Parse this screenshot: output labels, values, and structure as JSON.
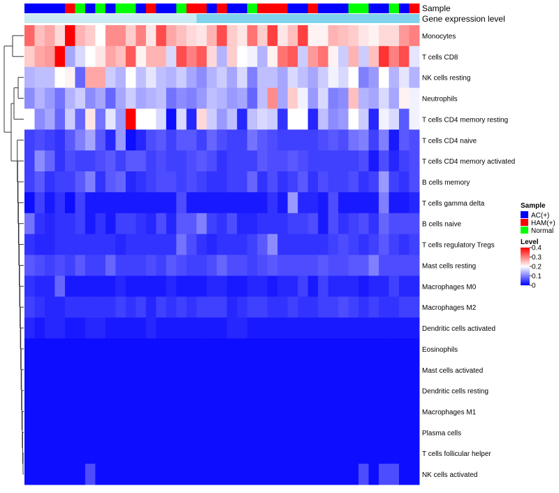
{
  "chart_data": {
    "type": "heatmap",
    "annotation_labels": {
      "sample": "Sample",
      "gene_expression": "Gene expression level"
    },
    "legend": {
      "sample_title": "Sample",
      "sample_entries": [
        {
          "label": "AC(+)",
          "color": "#0000ff"
        },
        {
          "label": "HAM(+)",
          "color": "#ff0000"
        },
        {
          "label": "Normal",
          "color": "#00ff00"
        }
      ],
      "level_title": "Level",
      "level_ticks": [
        "0.4",
        "0.3",
        "0.2",
        "0.1",
        "0"
      ],
      "level_tick_values": [
        0.4,
        0.3,
        0.2,
        0.1,
        0.0
      ],
      "color_scale": {
        "min": 0.0,
        "mid": 0.2,
        "max": 0.4,
        "low": "#0000ff",
        "midcolor": "#ffffff",
        "high": "#ff0000"
      }
    },
    "gene_expression_colors": {
      "low": "#dceff5",
      "high": "#6fcdea"
    },
    "sample_groups": [
      "AC(+)",
      "AC(+)",
      "AC(+)",
      "AC(+)",
      "HAM(+)",
      "Normal",
      "AC(+)",
      "Normal",
      "AC(+)",
      "Normal",
      "Normal",
      "AC(+)",
      "HAM(+)",
      "AC(+)",
      "AC(+)",
      "Normal",
      "HAM(+)",
      "HAM(+)",
      "AC(+)",
      "HAM(+)",
      "AC(+)",
      "AC(+)",
      "Normal",
      "HAM(+)",
      "HAM(+)",
      "HAM(+)",
      "AC(+)",
      "AC(+)",
      "HAM(+)",
      "AC(+)",
      "AC(+)",
      "AC(+)",
      "Normal",
      "Normal",
      "AC(+)",
      "AC(+)",
      "Normal",
      "AC(+)",
      "HAM(+)"
    ],
    "gene_expression_row": [
      0.15,
      0.15,
      0.15,
      0.15,
      0.15,
      0.15,
      0.15,
      0.15,
      0.15,
      0.15,
      0.15,
      0.15,
      0.15,
      0.15,
      0.15,
      0.15,
      0.15,
      0.85,
      0.85,
      0.85,
      0.85,
      0.85,
      0.85,
      0.85,
      0.85,
      0.85,
      0.85,
      0.85,
      0.85,
      0.85,
      0.85,
      0.85,
      0.85,
      0.85,
      0.85,
      0.85,
      0.85,
      0.85,
      0.85
    ],
    "rows": [
      {
        "label": "Monocytes",
        "values": [
          0.32,
          0.25,
          0.27,
          0.23,
          0.4,
          0.26,
          0.24,
          0.2,
          0.29,
          0.29,
          0.24,
          0.3,
          0.22,
          0.34,
          0.27,
          0.25,
          0.23,
          0.22,
          0.26,
          0.34,
          0.24,
          0.22,
          0.31,
          0.24,
          0.35,
          0.22,
          0.25,
          0.35,
          0.21,
          0.21,
          0.26,
          0.25,
          0.24,
          0.22,
          0.21,
          0.23,
          0.23,
          0.28,
          0.3
        ]
      },
      {
        "label": "T cells CD8",
        "values": [
          0.24,
          0.27,
          0.28,
          0.4,
          0.13,
          0.17,
          0.2,
          0.22,
          0.27,
          0.25,
          0.33,
          0.21,
          0.26,
          0.26,
          0.17,
          0.34,
          0.3,
          0.33,
          0.23,
          0.14,
          0.24,
          0.2,
          0.19,
          0.14,
          0.21,
          0.31,
          0.33,
          0.16,
          0.28,
          0.31,
          0.21,
          0.16,
          0.26,
          0.16,
          0.25,
          0.36,
          0.3,
          0.34,
          0.18
        ]
      },
      {
        "label": "NK cells resting",
        "values": [
          0.14,
          0.15,
          0.15,
          0.2,
          0.21,
          0.08,
          0.27,
          0.27,
          0.16,
          0.14,
          0.2,
          0.15,
          0.18,
          0.15,
          0.14,
          0.16,
          0.13,
          0.11,
          0.14,
          0.16,
          0.13,
          0.17,
          0.1,
          0.15,
          0.15,
          0.13,
          0.17,
          0.15,
          0.13,
          0.16,
          0.19,
          0.17,
          0.2,
          0.1,
          0.12,
          0.2,
          0.14,
          0.18,
          0.14
        ]
      },
      {
        "label": "Neutrophils",
        "values": [
          0.11,
          0.14,
          0.12,
          0.09,
          0.14,
          0.16,
          0.11,
          0.13,
          0.08,
          0.13,
          0.16,
          0.13,
          0.14,
          0.15,
          0.09,
          0.11,
          0.1,
          0.12,
          0.15,
          0.14,
          0.12,
          0.13,
          0.08,
          0.15,
          0.29,
          0.13,
          0.24,
          0.19,
          0.12,
          0.17,
          0.1,
          0.11,
          0.25,
          0.14,
          0.13,
          0.17,
          0.13,
          0.21,
          0.19
        ]
      },
      {
        "label": "T cells CD4 memory resting",
        "values": [
          0.2,
          0.11,
          0.13,
          0.08,
          0.16,
          0.08,
          0.22,
          0.09,
          0.18,
          0.12,
          0.4,
          0.2,
          0.2,
          0.17,
          0.01,
          0.17,
          0.03,
          0.23,
          0.16,
          0.12,
          0.15,
          0.03,
          0.15,
          0.17,
          0.16,
          0.04,
          0.2,
          0.2,
          0.03,
          0.15,
          0.11,
          0.12,
          0.2,
          0.16,
          0.03,
          0.19,
          0.17,
          0.07,
          0.19
        ]
      },
      {
        "label": "T cells CD4 naive",
        "values": [
          0.05,
          0.06,
          0.05,
          0.04,
          0.07,
          0.1,
          0.13,
          0.07,
          0.03,
          0.12,
          0.01,
          0.03,
          0.06,
          0.07,
          0.05,
          0.07,
          0.07,
          0.05,
          0.08,
          0.06,
          0.05,
          0.05,
          0.09,
          0.07,
          0.06,
          0.05,
          0.05,
          0.05,
          0.05,
          0.06,
          0.07,
          0.06,
          0.09,
          0.1,
          0.05,
          0.1,
          0.02,
          0.07,
          0.06
        ]
      },
      {
        "label": "T cells CD4 memory activated",
        "values": [
          0.05,
          0.11,
          0.08,
          0.04,
          0.06,
          0.05,
          0.05,
          0.06,
          0.07,
          0.05,
          0.07,
          0.07,
          0.05,
          0.06,
          0.05,
          0.05,
          0.06,
          0.07,
          0.06,
          0.04,
          0.05,
          0.05,
          0.05,
          0.07,
          0.06,
          0.06,
          0.07,
          0.06,
          0.05,
          0.05,
          0.05,
          0.05,
          0.05,
          0.06,
          0.02,
          0.06,
          0.03,
          0.05,
          0.06
        ]
      },
      {
        "label": "B cells memory",
        "values": [
          0.05,
          0.07,
          0.04,
          0.05,
          0.05,
          0.07,
          0.1,
          0.04,
          0.07,
          0.08,
          0.03,
          0.04,
          0.05,
          0.06,
          0.06,
          0.05,
          0.06,
          0.05,
          0.04,
          0.04,
          0.05,
          0.05,
          0.08,
          0.04,
          0.06,
          0.04,
          0.05,
          0.07,
          0.04,
          0.06,
          0.05,
          0.05,
          0.06,
          0.04,
          0.05,
          0.12,
          0.05,
          0.04,
          0.06
        ]
      },
      {
        "label": "T cells gamma delta",
        "values": [
          0.01,
          0.05,
          0.02,
          0.04,
          0.01,
          0.05,
          0.02,
          0.02,
          0.02,
          0.02,
          0.02,
          0.02,
          0.02,
          0.02,
          0.02,
          0.06,
          0.02,
          0.02,
          0.02,
          0.02,
          0.02,
          0.02,
          0.02,
          0.02,
          0.04,
          0.02,
          0.12,
          0.03,
          0.03,
          0.02,
          0.06,
          0.02,
          0.02,
          0.02,
          0.02,
          0.1,
          0.02,
          0.02,
          0.03
        ]
      },
      {
        "label": "B cells naive",
        "values": [
          0.09,
          0.04,
          0.03,
          0.04,
          0.04,
          0.05,
          0.02,
          0.04,
          0.02,
          0.05,
          0.05,
          0.04,
          0.03,
          0.06,
          0.03,
          0.07,
          0.07,
          0.1,
          0.05,
          0.04,
          0.06,
          0.03,
          0.03,
          0.04,
          0.04,
          0.04,
          0.05,
          0.05,
          0.06,
          0.02,
          0.06,
          0.04,
          0.05,
          0.06,
          0.04,
          0.08,
          0.06,
          0.06,
          0.06
        ]
      },
      {
        "label": "T cells regulatory  Tregs",
        "values": [
          0.04,
          0.03,
          0.03,
          0.04,
          0.04,
          0.04,
          0.04,
          0.04,
          0.04,
          0.03,
          0.04,
          0.04,
          0.04,
          0.04,
          0.04,
          0.09,
          0.06,
          0.04,
          0.03,
          0.04,
          0.04,
          0.04,
          0.05,
          0.07,
          0.11,
          0.04,
          0.04,
          0.04,
          0.04,
          0.04,
          0.05,
          0.06,
          0.05,
          0.04,
          0.05,
          0.07,
          0.05,
          0.04,
          0.05
        ]
      },
      {
        "label": "Mast cells resting",
        "values": [
          0.07,
          0.06,
          0.05,
          0.06,
          0.05,
          0.07,
          0.05,
          0.05,
          0.08,
          0.05,
          0.05,
          0.05,
          0.06,
          0.05,
          0.07,
          0.06,
          0.05,
          0.05,
          0.06,
          0.08,
          0.06,
          0.06,
          0.05,
          0.06,
          0.07,
          0.06,
          0.06,
          0.06,
          0.06,
          0.07,
          0.06,
          0.06,
          0.07,
          0.07,
          0.1,
          0.06,
          0.06,
          0.06,
          0.06
        ]
      },
      {
        "label": "Macrophages M0",
        "values": [
          0.04,
          0.03,
          0.03,
          0.08,
          0.02,
          0.02,
          0.02,
          0.02,
          0.02,
          0.03,
          0.02,
          0.02,
          0.02,
          0.02,
          0.03,
          0.02,
          0.02,
          0.02,
          0.03,
          0.03,
          0.02,
          0.02,
          0.03,
          0.03,
          0.02,
          0.03,
          0.03,
          0.05,
          0.02,
          0.05,
          0.03,
          0.03,
          0.03,
          0.02,
          0.03,
          0.03,
          0.05,
          0.03,
          0.03
        ]
      },
      {
        "label": "Macrophages M2",
        "values": [
          0.05,
          0.04,
          0.03,
          0.03,
          0.04,
          0.04,
          0.04,
          0.04,
          0.04,
          0.05,
          0.04,
          0.05,
          0.03,
          0.05,
          0.04,
          0.05,
          0.04,
          0.05,
          0.05,
          0.05,
          0.03,
          0.04,
          0.05,
          0.05,
          0.04,
          0.04,
          0.05,
          0.04,
          0.04,
          0.05,
          0.05,
          0.06,
          0.05,
          0.04,
          0.05,
          0.04,
          0.04,
          0.05,
          0.05
        ]
      },
      {
        "label": "Dendritic cells activated",
        "values": [
          0.03,
          0.02,
          0.03,
          0.03,
          0.02,
          0.02,
          0.03,
          0.03,
          0.02,
          0.02,
          0.02,
          0.02,
          0.03,
          0.02,
          0.02,
          0.02,
          0.02,
          0.02,
          0.02,
          0.02,
          0.03,
          0.03,
          0.02,
          0.02,
          0.02,
          0.02,
          0.02,
          0.02,
          0.02,
          0.02,
          0.02,
          0.02,
          0.02,
          0.02,
          0.02,
          0.02,
          0.02,
          0.02,
          0.02
        ]
      },
      {
        "label": "Eosinophils",
        "values": [
          0.01,
          0.01,
          0.01,
          0.01,
          0.01,
          0.01,
          0.01,
          0.01,
          0.01,
          0.01,
          0.01,
          0.01,
          0.01,
          0.01,
          0.01,
          0.01,
          0.01,
          0.01,
          0.01,
          0.01,
          0.01,
          0.01,
          0.01,
          0.01,
          0.01,
          0.01,
          0.01,
          0.01,
          0.01,
          0.01,
          0.01,
          0.01,
          0.01,
          0.01,
          0.01,
          0.01,
          0.01,
          0.01,
          0.01
        ]
      },
      {
        "label": "Mast cells activated",
        "values": [
          0.01,
          0.01,
          0.01,
          0.01,
          0.01,
          0.01,
          0.01,
          0.01,
          0.01,
          0.01,
          0.01,
          0.01,
          0.01,
          0.01,
          0.01,
          0.01,
          0.01,
          0.01,
          0.01,
          0.01,
          0.01,
          0.01,
          0.01,
          0.01,
          0.01,
          0.01,
          0.01,
          0.01,
          0.01,
          0.01,
          0.01,
          0.01,
          0.01,
          0.01,
          0.01,
          0.01,
          0.01,
          0.01,
          0.01
        ]
      },
      {
        "label": "Dendritic cells resting",
        "values": [
          0.01,
          0.01,
          0.01,
          0.01,
          0.01,
          0.01,
          0.01,
          0.01,
          0.01,
          0.01,
          0.01,
          0.01,
          0.01,
          0.01,
          0.01,
          0.01,
          0.01,
          0.01,
          0.01,
          0.01,
          0.01,
          0.01,
          0.01,
          0.01,
          0.01,
          0.01,
          0.01,
          0.01,
          0.01,
          0.01,
          0.01,
          0.01,
          0.01,
          0.01,
          0.01,
          0.01,
          0.01,
          0.01,
          0.01
        ]
      },
      {
        "label": "Macrophages M1",
        "values": [
          0.01,
          0.01,
          0.01,
          0.01,
          0.01,
          0.01,
          0.01,
          0.01,
          0.01,
          0.01,
          0.01,
          0.01,
          0.01,
          0.01,
          0.01,
          0.01,
          0.01,
          0.01,
          0.01,
          0.01,
          0.01,
          0.01,
          0.01,
          0.01,
          0.01,
          0.01,
          0.01,
          0.01,
          0.01,
          0.01,
          0.01,
          0.01,
          0.01,
          0.01,
          0.01,
          0.01,
          0.01,
          0.01,
          0.01
        ]
      },
      {
        "label": "Plasma cells",
        "values": [
          0.01,
          0.01,
          0.01,
          0.01,
          0.01,
          0.01,
          0.01,
          0.01,
          0.01,
          0.01,
          0.01,
          0.01,
          0.01,
          0.01,
          0.01,
          0.01,
          0.01,
          0.01,
          0.01,
          0.01,
          0.01,
          0.01,
          0.01,
          0.01,
          0.01,
          0.01,
          0.01,
          0.01,
          0.01,
          0.01,
          0.01,
          0.01,
          0.01,
          0.01,
          0.01,
          0.01,
          0.01,
          0.01,
          0.01
        ]
      },
      {
        "label": "T cells follicular helper",
        "values": [
          0.01,
          0.01,
          0.01,
          0.01,
          0.01,
          0.01,
          0.01,
          0.01,
          0.01,
          0.01,
          0.01,
          0.01,
          0.01,
          0.01,
          0.01,
          0.01,
          0.01,
          0.01,
          0.01,
          0.01,
          0.01,
          0.01,
          0.01,
          0.01,
          0.01,
          0.01,
          0.01,
          0.01,
          0.01,
          0.01,
          0.01,
          0.01,
          0.01,
          0.01,
          0.01,
          0.01,
          0.01,
          0.01,
          0.01
        ]
      },
      {
        "label": "NK cells activated",
        "values": [
          0.01,
          0.01,
          0.01,
          0.01,
          0.01,
          0.01,
          0.06,
          0.01,
          0.01,
          0.01,
          0.01,
          0.01,
          0.01,
          0.01,
          0.01,
          0.01,
          0.01,
          0.01,
          0.01,
          0.01,
          0.01,
          0.01,
          0.01,
          0.01,
          0.01,
          0.01,
          0.01,
          0.01,
          0.01,
          0.01,
          0.01,
          0.01,
          0.01,
          0.06,
          0.01,
          0.06,
          0.06,
          0.01,
          0.01
        ]
      }
    ]
  }
}
